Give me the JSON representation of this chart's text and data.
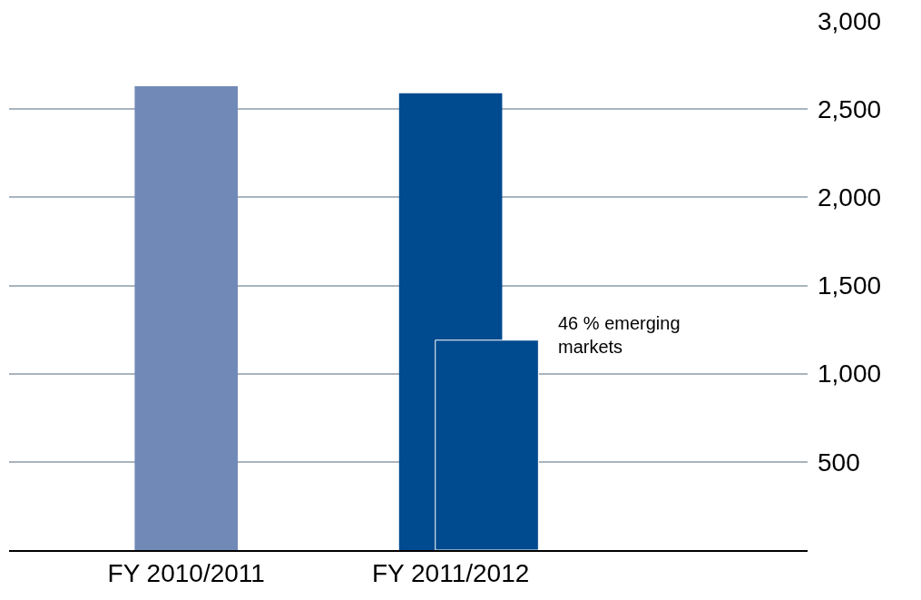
{
  "chart_data": {
    "type": "bar",
    "categories": [
      "FY 2010/2011",
      "FY 2011/2012"
    ],
    "series": [
      {
        "colors": [
          "#7189b7",
          "#004a8f"
        ],
        "values": [
          2630,
          2590
        ]
      },
      {
        "color": "#004a8f",
        "values": [
          null,
          1190
        ]
      }
    ],
    "ylim": [
      0,
      3000
    ],
    "yticks": [
      500,
      {
        "value": 1000,
        "label": "1,000"
      },
      {
        "value": 1500,
        "label": "1,500"
      },
      {
        "value": 2000,
        "label": "2,000"
      },
      {
        "value": 2500,
        "label": "2,500"
      },
      {
        "value": 3000,
        "label": "3,000"
      }
    ],
    "grid": "y",
    "annotations": [
      "46 % emerging\nmarkets"
    ]
  }
}
